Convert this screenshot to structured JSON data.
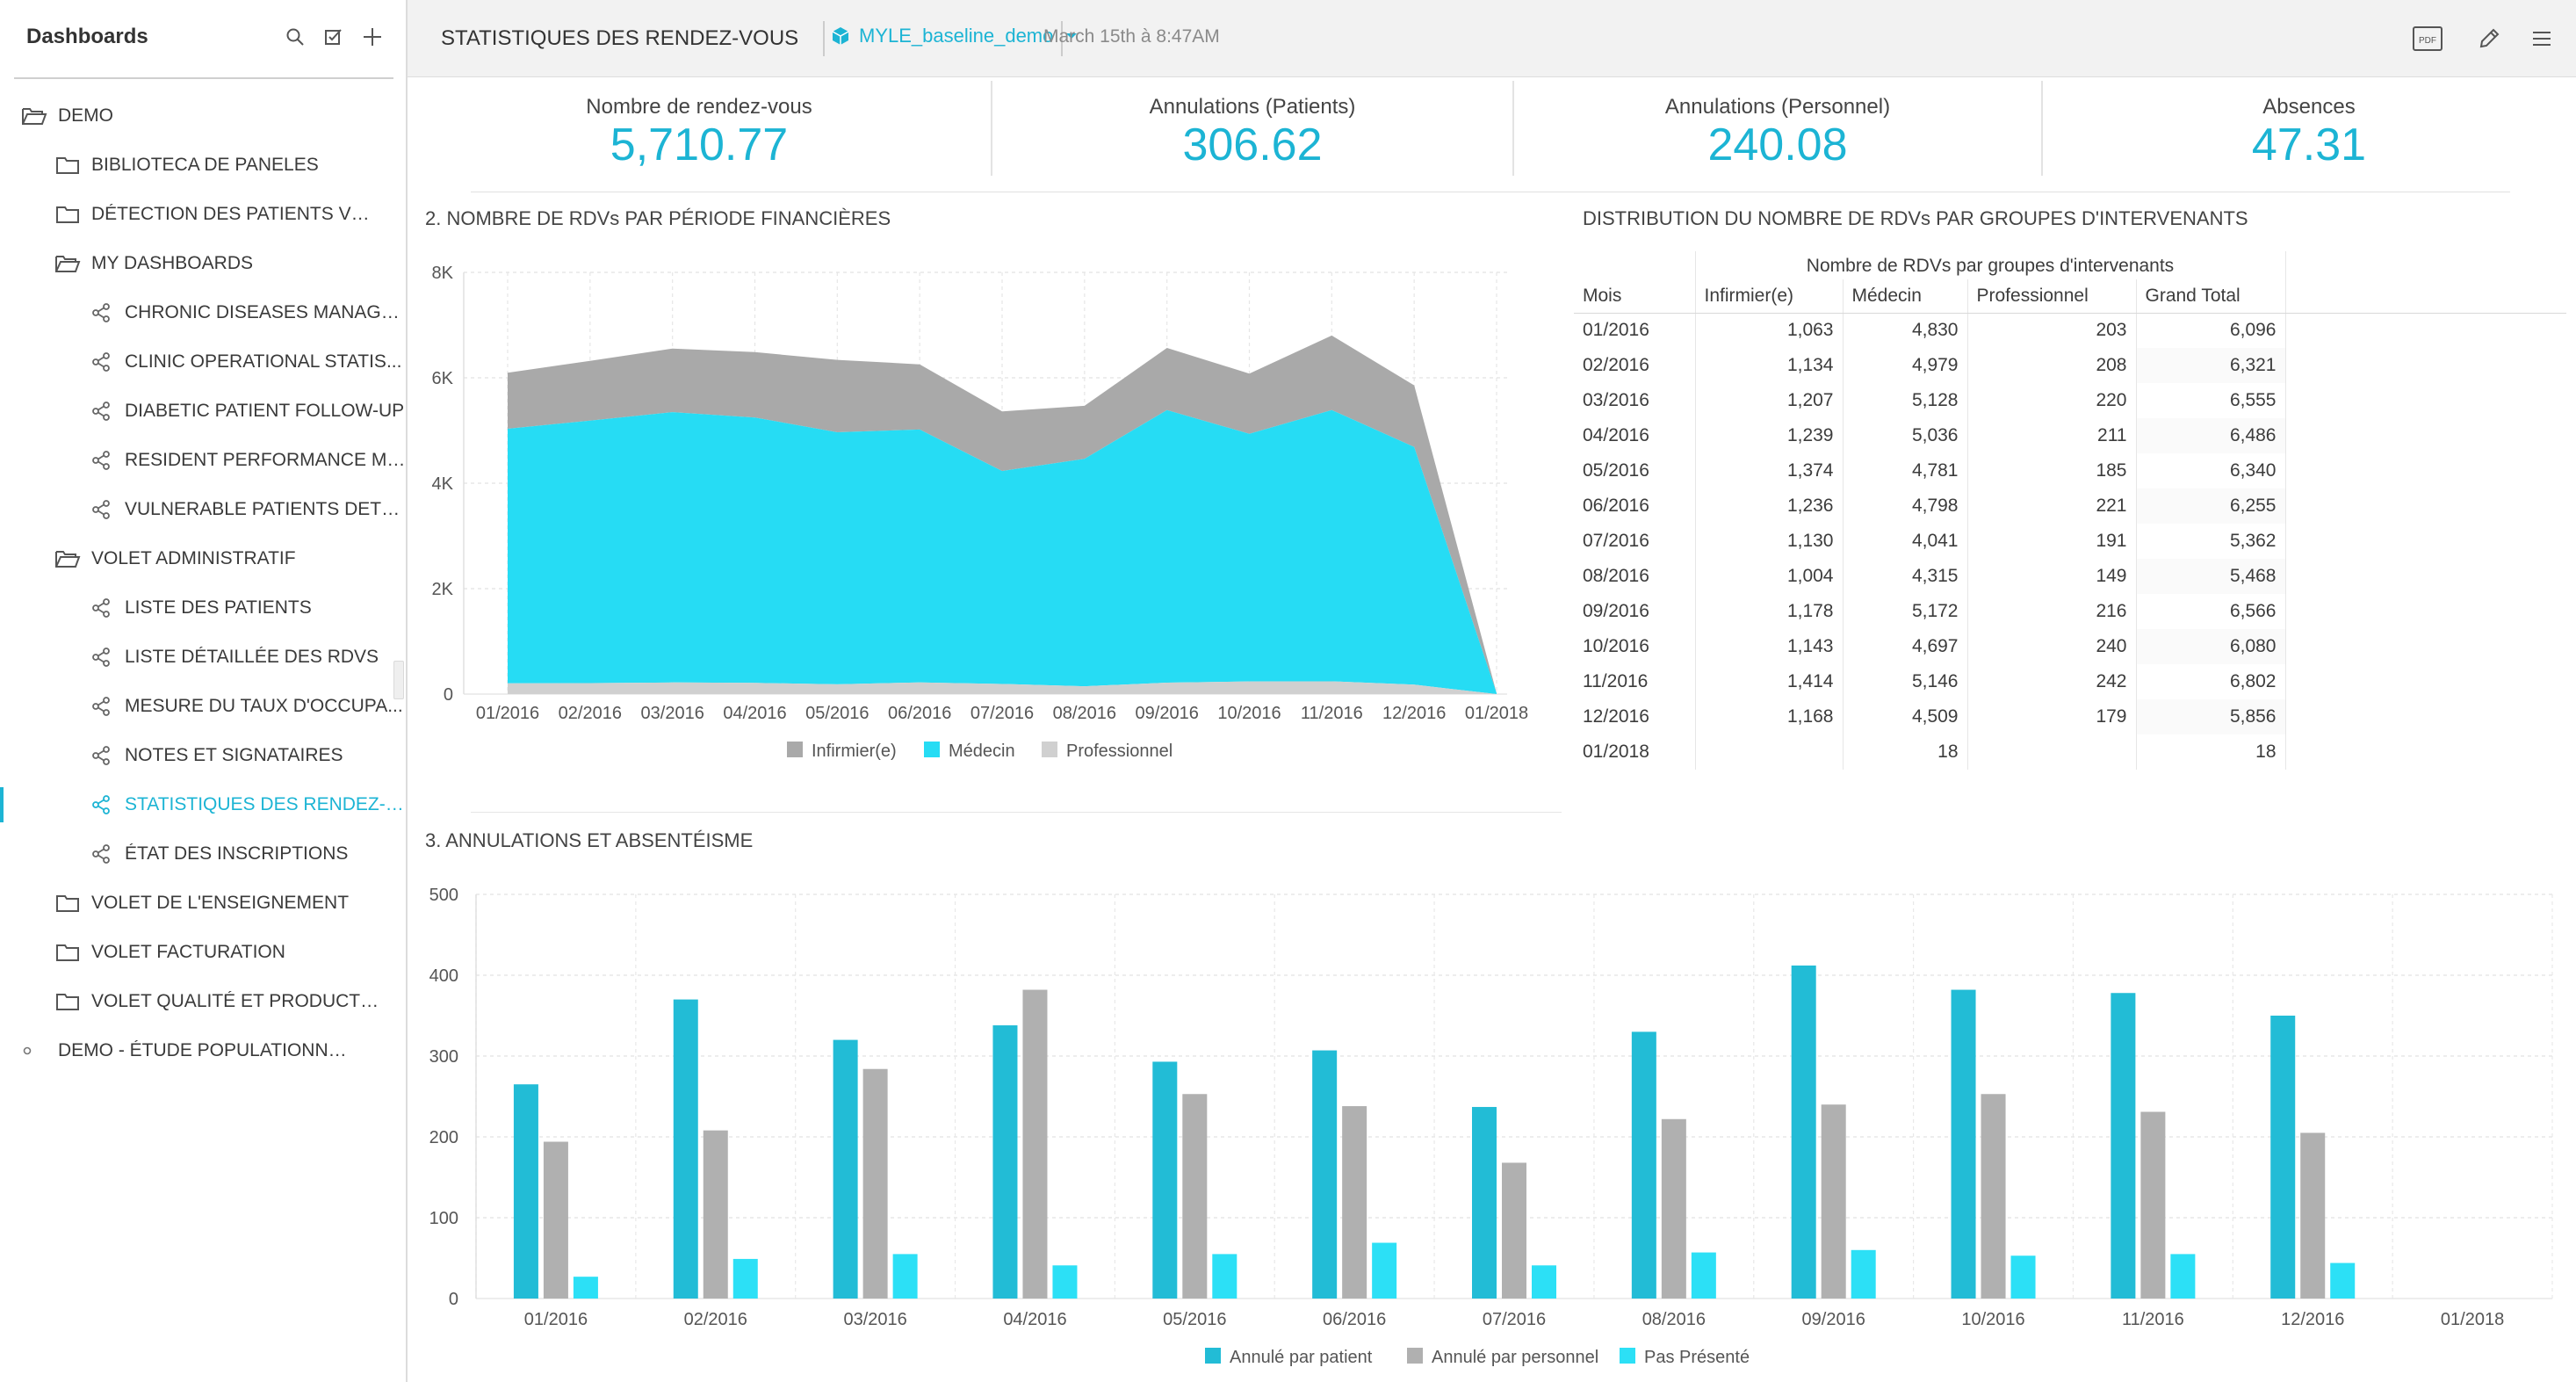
{
  "sidebar": {
    "title": "Dashboards",
    "items": [
      {
        "label": "DEMO",
        "level": 0,
        "icon": "folder-open-icon"
      },
      {
        "label": "BIBLIOTECA DE PANELES",
        "level": 1,
        "icon": "folder-icon"
      },
      {
        "label": "DÉTECTION DES PATIENTS VULNÉ...",
        "level": 1,
        "icon": "folder-icon"
      },
      {
        "label": "MY DASHBOARDS",
        "level": 1,
        "icon": "folder-open-icon"
      },
      {
        "label": "CHRONIC DISEASES MANAGE...",
        "level": 2,
        "icon": "share-icon"
      },
      {
        "label": "CLINIC OPERATIONAL STATIS...",
        "level": 2,
        "icon": "share-icon"
      },
      {
        "label": "DIABETIC PATIENT FOLLOW-UP",
        "level": 2,
        "icon": "share-icon"
      },
      {
        "label": "RESIDENT PERFORMANCE ME...",
        "level": 2,
        "icon": "share-icon"
      },
      {
        "label": "VULNERABLE PATIENTS DETE...",
        "level": 2,
        "icon": "share-icon"
      },
      {
        "label": "VOLET ADMINISTRATIF",
        "level": 1,
        "icon": "folder-open-icon"
      },
      {
        "label": "LISTE DES PATIENTS",
        "level": 2,
        "icon": "share-icon"
      },
      {
        "label": "LISTE DÉTAILLÉE DES RDVS",
        "level": 2,
        "icon": "share-icon"
      },
      {
        "label": "MESURE DU TAUX D'OCCUPA...",
        "level": 2,
        "icon": "share-icon"
      },
      {
        "label": "NOTES ET SIGNATAIRES",
        "level": 2,
        "icon": "share-icon"
      },
      {
        "label": "STATISTIQUES DES RENDEZ-V...",
        "level": 2,
        "icon": "share-icon",
        "active": true
      },
      {
        "label": "ÉTAT DES INSCRIPTIONS",
        "level": 2,
        "icon": "share-icon"
      },
      {
        "label": "VOLET DE L'ENSEIGNEMENT",
        "level": 1,
        "icon": "folder-icon"
      },
      {
        "label": "VOLET FACTURATION",
        "level": 1,
        "icon": "folder-icon"
      },
      {
        "label": "VOLET QUALITÉ ET PRODUCTIVITÉ",
        "level": 1,
        "icon": "folder-icon"
      },
      {
        "label": "DEMO - ÉTUDE POPULATIONNELLE",
        "level": 0,
        "icon": "bullet-icon"
      }
    ]
  },
  "topbar": {
    "title": "STATISTIQUES DES RENDEZ-VOUS",
    "dataset": "MYLE_baseline_demo",
    "timestamp": "March 15th à 8:47AM",
    "pdf_label": "PDF"
  },
  "kpis": [
    {
      "label": "Nombre de rendez-vous",
      "value": "5,710.77"
    },
    {
      "label": "Annulations (Patients)",
      "value": "306.62"
    },
    {
      "label": "Annulations (Personnel)",
      "value": "240.08"
    },
    {
      "label": "Absences",
      "value": "47.31"
    }
  ],
  "colors": {
    "accent": "#1cb4d4",
    "infirmier": "#a9a9a9",
    "medecin": "#26dcf4",
    "professionnel": "#d0d0d0",
    "annule_patient": "#22bcd6",
    "annule_personnel": "#b0b0b0",
    "pas_presente": "#2ce0f6"
  },
  "panels": {
    "area_title": "2. NOMBRE DE RDVs PAR PÉRIODE FINANCIÈRES",
    "table_title": "DISTRIBUTION DU NOMBRE DE RDVs PAR GROUPES D'INTERVENANTS",
    "bar_title": "3. ANNULATIONS ET ABSENTÉISME"
  },
  "chart_data": [
    {
      "type": "area",
      "stacked": true,
      "x": [
        "01/2016",
        "02/2016",
        "03/2016",
        "04/2016",
        "05/2016",
        "06/2016",
        "07/2016",
        "08/2016",
        "09/2016",
        "10/2016",
        "11/2016",
        "12/2016",
        "01/2018"
      ],
      "series": [
        {
          "name": "Professionnel",
          "values": [
            203,
            208,
            220,
            211,
            185,
            221,
            191,
            149,
            216,
            240,
            242,
            179,
            0
          ]
        },
        {
          "name": "Médecin",
          "values": [
            4830,
            4979,
            5128,
            5036,
            4781,
            4798,
            4041,
            4315,
            5172,
            4697,
            5146,
            4509,
            18
          ]
        },
        {
          "name": "Infirmier(e)",
          "values": [
            1063,
            1134,
            1207,
            1239,
            1374,
            1236,
            1130,
            1004,
            1178,
            1143,
            1414,
            1168,
            0
          ]
        }
      ],
      "yticks": [
        "0",
        "2K",
        "4K",
        "6K",
        "8K"
      ],
      "ylim": [
        0,
        8000
      ],
      "legend": [
        "Infirmier(e)",
        "Médecin",
        "Professionnel"
      ],
      "legend_position": "bottom",
      "grid": true
    },
    {
      "type": "table",
      "group_header": "Nombre de RDVs par groupes d'intervenants",
      "columns": [
        "Mois",
        "Infirmier(e)",
        "Médecin",
        "Professionnel",
        "Grand Total"
      ],
      "rows": [
        [
          "01/2016",
          "1,063",
          "4,830",
          "203",
          "6,096"
        ],
        [
          "02/2016",
          "1,134",
          "4,979",
          "208",
          "6,321"
        ],
        [
          "03/2016",
          "1,207",
          "5,128",
          "220",
          "6,555"
        ],
        [
          "04/2016",
          "1,239",
          "5,036",
          "211",
          "6,486"
        ],
        [
          "05/2016",
          "1,374",
          "4,781",
          "185",
          "6,340"
        ],
        [
          "06/2016",
          "1,236",
          "4,798",
          "221",
          "6,255"
        ],
        [
          "07/2016",
          "1,130",
          "4,041",
          "191",
          "5,362"
        ],
        [
          "08/2016",
          "1,004",
          "4,315",
          "149",
          "5,468"
        ],
        [
          "09/2016",
          "1,178",
          "5,172",
          "216",
          "6,566"
        ],
        [
          "10/2016",
          "1,143",
          "4,697",
          "240",
          "6,080"
        ],
        [
          "11/2016",
          "1,414",
          "5,146",
          "242",
          "6,802"
        ],
        [
          "12/2016",
          "1,168",
          "4,509",
          "179",
          "5,856"
        ],
        [
          "01/2018",
          "",
          "18",
          "",
          "18"
        ]
      ]
    },
    {
      "type": "bar",
      "categories": [
        "01/2016",
        "02/2016",
        "03/2016",
        "04/2016",
        "05/2016",
        "06/2016",
        "07/2016",
        "08/2016",
        "09/2016",
        "10/2016",
        "11/2016",
        "12/2016",
        "01/2018"
      ],
      "series": [
        {
          "name": "Annulé par patient",
          "values": [
            265,
            370,
            320,
            338,
            293,
            307,
            237,
            330,
            412,
            382,
            378,
            350,
            0
          ]
        },
        {
          "name": "Annulé par personnel",
          "values": [
            194,
            208,
            284,
            382,
            253,
            238,
            168,
            222,
            240,
            253,
            231,
            205,
            0
          ]
        },
        {
          "name": "Pas Présenté",
          "values": [
            27,
            49,
            55,
            41,
            55,
            69,
            41,
            57,
            60,
            53,
            55,
            44,
            0
          ]
        }
      ],
      "yticks": [
        "0",
        "100",
        "200",
        "300",
        "400",
        "500"
      ],
      "ylim": [
        0,
        500
      ],
      "legend_position": "bottom",
      "grid": true
    }
  ]
}
